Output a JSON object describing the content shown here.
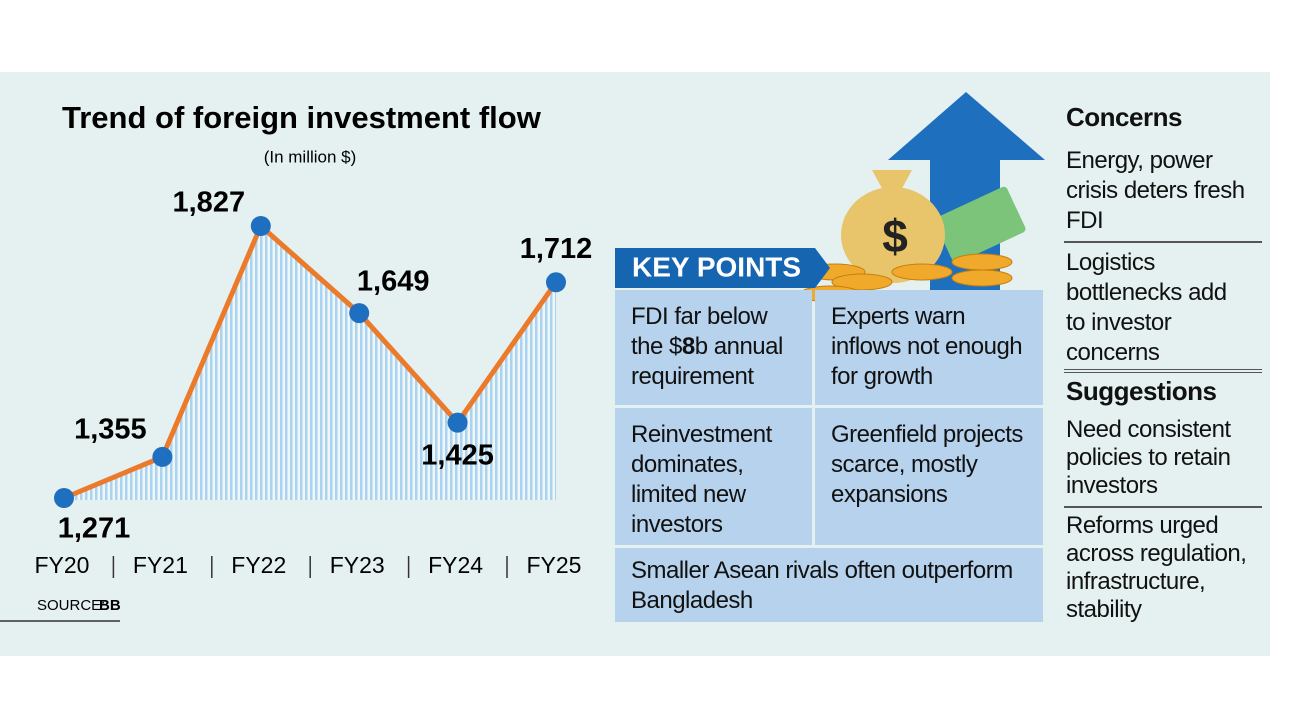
{
  "chart_data": {
    "type": "line",
    "title": "Trend of foreign investment flow",
    "subtitle": "(In million $)",
    "categories": [
      "FY20",
      "FY21",
      "FY22",
      "FY23",
      "FY24",
      "FY25"
    ],
    "values": [
      1271,
      1355,
      1827,
      1649,
      1425,
      1712
    ],
    "value_labels": [
      "1,271",
      "1,355",
      "1,827",
      "1,649",
      "1,425",
      "1,712"
    ],
    "line_color": "#ec7a2b",
    "marker_color": "#1e6fc0",
    "area_color": "#a9d3f0",
    "source_label": "SOURCE:",
    "source": "BB"
  },
  "key_points": {
    "title": "KEY POINTS",
    "items": [
      {
        "parts": [
          "FDI far below the $",
          "8",
          "b annual requirement"
        ]
      },
      {
        "text": "Experts warn inflows not enough for growth"
      },
      {
        "text": "Reinvestment dominates, limited new investors"
      },
      {
        "text": "Greenfield projects scarce, mostly expansions"
      },
      {
        "text": "Smaller Asean rivals often outperform Bangladesh"
      }
    ]
  },
  "concerns": {
    "title": "Concerns",
    "items": [
      "Energy, power crisis deters fresh FDI",
      "Logistics bottlenecks add to investor concerns"
    ]
  },
  "suggestions": {
    "title": "Suggestions",
    "items": [
      "Need consistent policies to retain investors",
      "Reforms urged across regulation, infrastructure, stability"
    ]
  }
}
